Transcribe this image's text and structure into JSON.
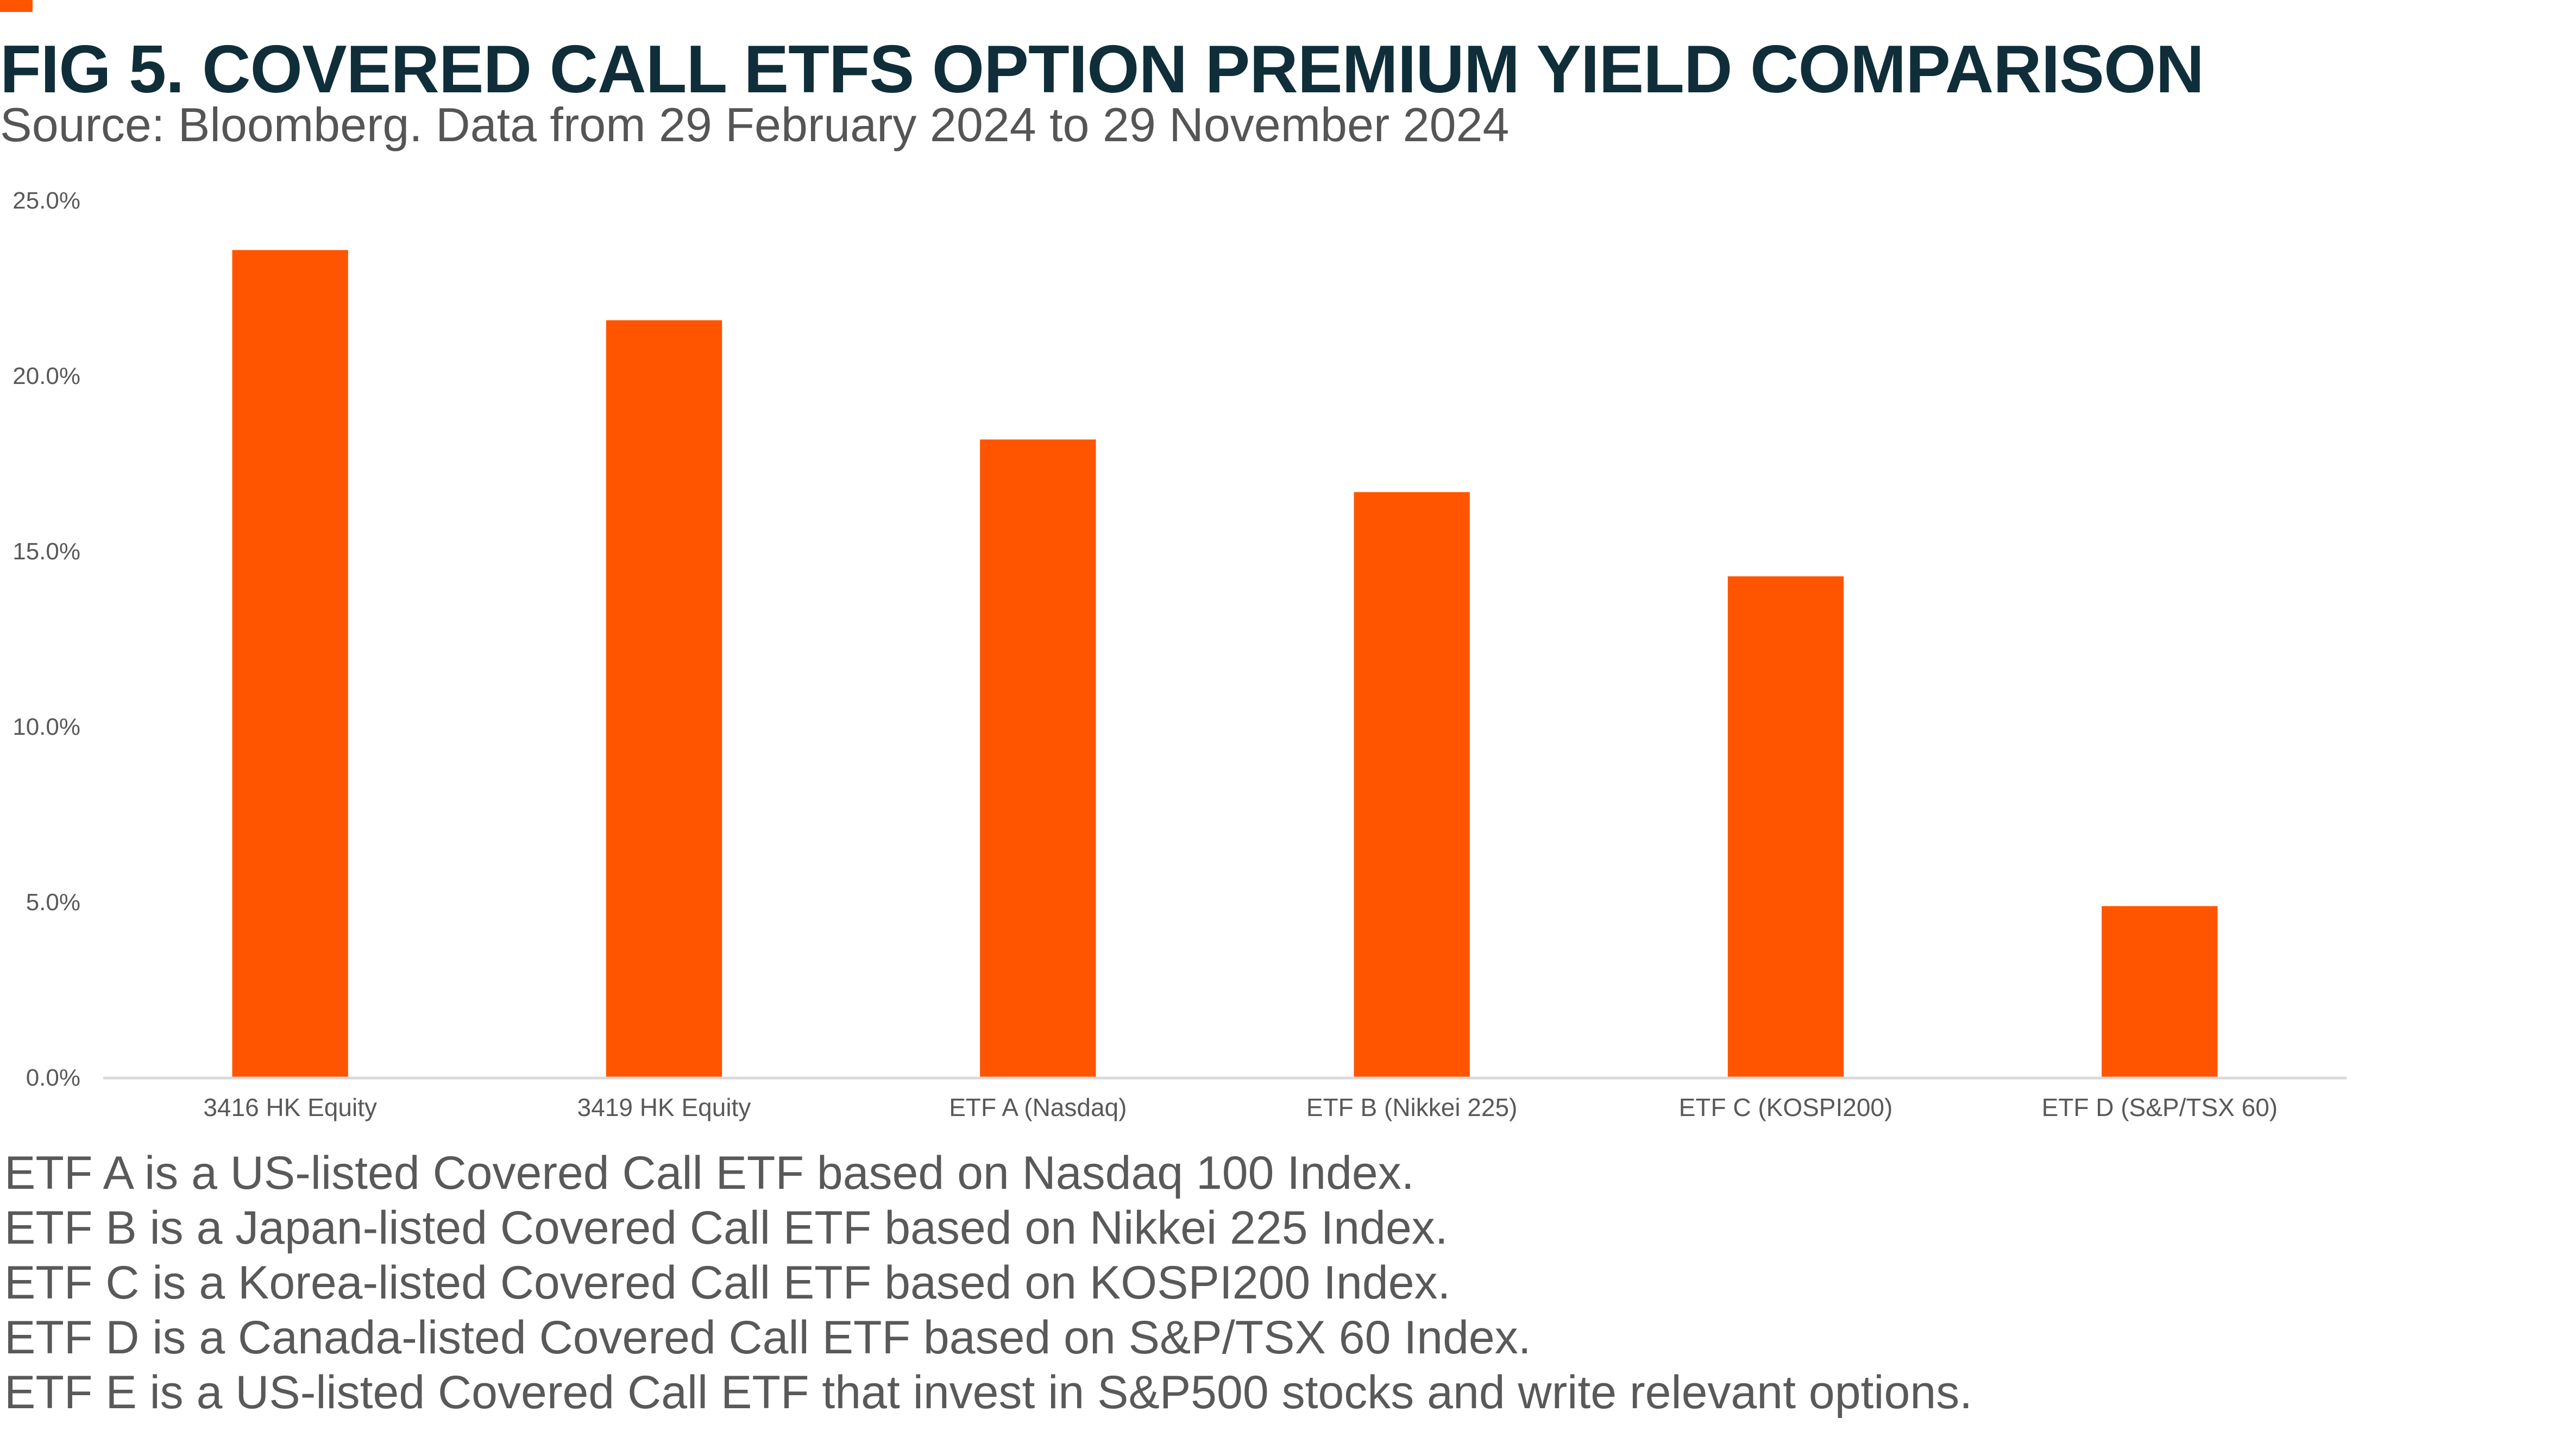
{
  "header": {
    "title": "FIG 5. COVERED CALL ETFS OPTION PREMIUM YIELD COMPARISON",
    "subtitle": "Source: Bloomberg. Data from 29 February 2024 to 29 November 2024"
  },
  "colors": {
    "accent": "#FF5500",
    "title": "#0F2E3A",
    "bar": "#FF5500",
    "axis_text": "#595959",
    "axis_line": "#D9D9D9"
  },
  "chart_data": {
    "type": "bar",
    "categories": [
      "3416 HK Equity",
      "3419 HK Equity",
      "ETF A (Nasdaq)",
      "ETF B (Nikkei 225)",
      "ETF C (KOSPI200)",
      "ETF D (S&P/TSX 60)"
    ],
    "values": [
      23.6,
      21.6,
      18.2,
      16.7,
      14.3,
      4.9
    ],
    "ylim": [
      0,
      25
    ],
    "yticks": [
      "0.0%",
      "5.0%",
      "10.0%",
      "15.0%",
      "20.0%",
      "25.0%"
    ],
    "ytick_values": [
      0,
      5,
      10,
      15,
      20,
      25
    ],
    "grid": false,
    "legend": "none",
    "unit": "%"
  },
  "notes": [
    "ETF A is a US-listed Covered Call ETF based on Nasdaq 100 Index.",
    "ETF B is a Japan-listed Covered Call ETF based on Nikkei 225 Index.",
    "ETF C is a Korea-listed Covered Call ETF based on KOSPI200 Index.",
    "ETF D is a Canada-listed Covered Call ETF based on S&P/TSX 60 Index.",
    "ETF E is a US-listed Covered Call ETF that invest in S&P500 stocks and write relevant options."
  ]
}
